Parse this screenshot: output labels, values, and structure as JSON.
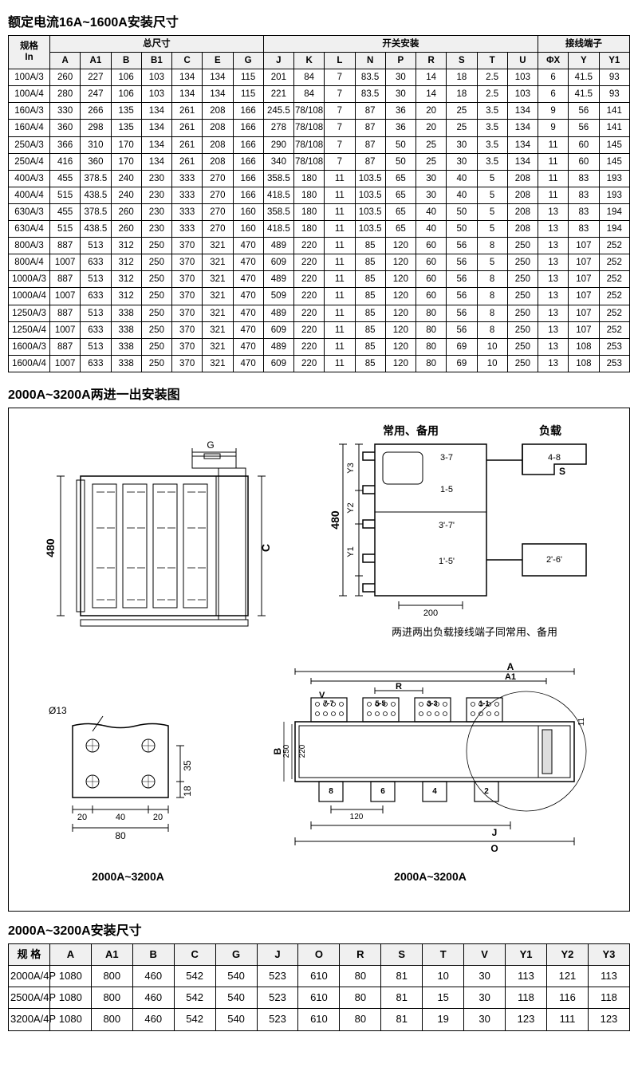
{
  "title1": "额定电流16A~1600A安装尺寸",
  "title2": "2000A~3200A两进一出安装图",
  "title3": "2000A~3200A安装尺寸",
  "table1": {
    "header_groups": [
      "规格\nIn",
      "总尺寸",
      "开关安装",
      "接线端子"
    ],
    "columns": [
      "A",
      "A1",
      "B",
      "B1",
      "C",
      "E",
      "G",
      "J",
      "K",
      "L",
      "N",
      "P",
      "R",
      "S",
      "T",
      "U",
      "ΦX",
      "Y",
      "Y1"
    ],
    "rows": [
      [
        "100A/3",
        "260",
        "227",
        "106",
        "103",
        "134",
        "134",
        "115",
        "201",
        "84",
        "7",
        "83.5",
        "30",
        "14",
        "18",
        "2.5",
        "103",
        "6",
        "41.5",
        "93"
      ],
      [
        "100A/4",
        "280",
        "247",
        "106",
        "103",
        "134",
        "134",
        "115",
        "221",
        "84",
        "7",
        "83.5",
        "30",
        "14",
        "18",
        "2.5",
        "103",
        "6",
        "41.5",
        "93"
      ],
      [
        "160A/3",
        "330",
        "266",
        "135",
        "134",
        "261",
        "208",
        "166",
        "245.5",
        "78/108",
        "7",
        "87",
        "36",
        "20",
        "25",
        "3.5",
        "134",
        "9",
        "56",
        "141"
      ],
      [
        "160A/4",
        "360",
        "298",
        "135",
        "134",
        "261",
        "208",
        "166",
        "278",
        "78/108",
        "7",
        "87",
        "36",
        "20",
        "25",
        "3.5",
        "134",
        "9",
        "56",
        "141"
      ],
      [
        "250A/3",
        "366",
        "310",
        "170",
        "134",
        "261",
        "208",
        "166",
        "290",
        "78/108",
        "7",
        "87",
        "50",
        "25",
        "30",
        "3.5",
        "134",
        "11",
        "60",
        "145"
      ],
      [
        "250A/4",
        "416",
        "360",
        "170",
        "134",
        "261",
        "208",
        "166",
        "340",
        "78/108",
        "7",
        "87",
        "50",
        "25",
        "30",
        "3.5",
        "134",
        "11",
        "60",
        "145"
      ],
      [
        "400A/3",
        "455",
        "378.5",
        "240",
        "230",
        "333",
        "270",
        "166",
        "358.5",
        "180",
        "11",
        "103.5",
        "65",
        "30",
        "40",
        "5",
        "208",
        "11",
        "83",
        "193"
      ],
      [
        "400A/4",
        "515",
        "438.5",
        "240",
        "230",
        "333",
        "270",
        "166",
        "418.5",
        "180",
        "11",
        "103.5",
        "65",
        "30",
        "40",
        "5",
        "208",
        "11",
        "83",
        "193"
      ],
      [
        "630A/3",
        "455",
        "378.5",
        "260",
        "230",
        "333",
        "270",
        "160",
        "358.5",
        "180",
        "11",
        "103.5",
        "65",
        "40",
        "50",
        "5",
        "208",
        "13",
        "83",
        "194"
      ],
      [
        "630A/4",
        "515",
        "438.5",
        "260",
        "230",
        "333",
        "270",
        "160",
        "418.5",
        "180",
        "11",
        "103.5",
        "65",
        "40",
        "50",
        "5",
        "208",
        "13",
        "83",
        "194"
      ],
      [
        "800A/3",
        "887",
        "513",
        "312",
        "250",
        "370",
        "321",
        "470",
        "489",
        "220",
        "11",
        "85",
        "120",
        "60",
        "56",
        "8",
        "250",
        "13",
        "107",
        "252"
      ],
      [
        "800A/4",
        "1007",
        "633",
        "312",
        "250",
        "370",
        "321",
        "470",
        "609",
        "220",
        "11",
        "85",
        "120",
        "60",
        "56",
        "5",
        "250",
        "13",
        "107",
        "252"
      ],
      [
        "1000A/3",
        "887",
        "513",
        "312",
        "250",
        "370",
        "321",
        "470",
        "489",
        "220",
        "11",
        "85",
        "120",
        "60",
        "56",
        "8",
        "250",
        "13",
        "107",
        "252"
      ],
      [
        "1000A/4",
        "1007",
        "633",
        "312",
        "250",
        "370",
        "321",
        "470",
        "509",
        "220",
        "11",
        "85",
        "120",
        "60",
        "56",
        "8",
        "250",
        "13",
        "107",
        "252"
      ],
      [
        "1250A/3",
        "887",
        "513",
        "338",
        "250",
        "370",
        "321",
        "470",
        "489",
        "220",
        "11",
        "85",
        "120",
        "80",
        "56",
        "8",
        "250",
        "13",
        "107",
        "252"
      ],
      [
        "1250A/4",
        "1007",
        "633",
        "338",
        "250",
        "370",
        "321",
        "470",
        "609",
        "220",
        "11",
        "85",
        "120",
        "80",
        "56",
        "8",
        "250",
        "13",
        "107",
        "252"
      ],
      [
        "1600A/3",
        "887",
        "513",
        "338",
        "250",
        "370",
        "321",
        "470",
        "489",
        "220",
        "11",
        "85",
        "120",
        "80",
        "69",
        "10",
        "250",
        "13",
        "108",
        "253"
      ],
      [
        "1600A/4",
        "1007",
        "633",
        "338",
        "250",
        "370",
        "321",
        "470",
        "609",
        "220",
        "11",
        "85",
        "120",
        "80",
        "69",
        "10",
        "250",
        "13",
        "108",
        "253"
      ]
    ]
  },
  "table2": {
    "columns": [
      "规 格",
      "A",
      "A1",
      "B",
      "C",
      "G",
      "J",
      "O",
      "R",
      "S",
      "T",
      "V",
      "Y1",
      "Y2",
      "Y3"
    ],
    "rows": [
      [
        "2000A/4P",
        "1080",
        "800",
        "460",
        "542",
        "540",
        "523",
        "610",
        "80",
        "81",
        "10",
        "30",
        "113",
        "121",
        "113"
      ],
      [
        "2500A/4P",
        "1080",
        "800",
        "460",
        "542",
        "540",
        "523",
        "610",
        "80",
        "81",
        "15",
        "30",
        "118",
        "116",
        "118"
      ],
      [
        "3200A/4P",
        "1080",
        "800",
        "460",
        "542",
        "540",
        "523",
        "610",
        "80",
        "81",
        "19",
        "30",
        "123",
        "111",
        "123"
      ]
    ]
  },
  "diagram": {
    "label_top_left": "常用、备用",
    "label_top_right": "负载",
    "label_caption": "两进两出负载接线端子同常用、备用",
    "label_range": "2000A~3200A",
    "dim_480": "480",
    "dim_C": "C",
    "dim_G": "G",
    "dim_200": "200",
    "dim_Y1": "Y1",
    "dim_Y2": "Y2",
    "dim_Y3": "Y3",
    "dim_S": "S",
    "dim_37": "3-7",
    "dim_15": "1-5",
    "dim_37b": "3'-7'",
    "dim_15b": "1'-5'",
    "dim_48": "4-8",
    "dim_26": "2'-6'",
    "dim_phi13": "Ø13",
    "dim_35": "35",
    "dim_18": "18",
    "dim_20": "20",
    "dim_40": "40",
    "dim_80": "80",
    "dim_A": "A",
    "dim_A1": "A1",
    "dim_B": "B",
    "dim_250": "250",
    "dim_220": "220",
    "dim_R": "R",
    "dim_V": "V",
    "dim_11": "11",
    "dim_120": "120",
    "dim_J": "J",
    "dim_O": "O",
    "term_77": "7-7",
    "term_55": "5-5",
    "term_33": "3-3",
    "term_11t": "1-1",
    "term_8": "8",
    "term_6": "6",
    "term_4": "4",
    "term_2": "2"
  }
}
